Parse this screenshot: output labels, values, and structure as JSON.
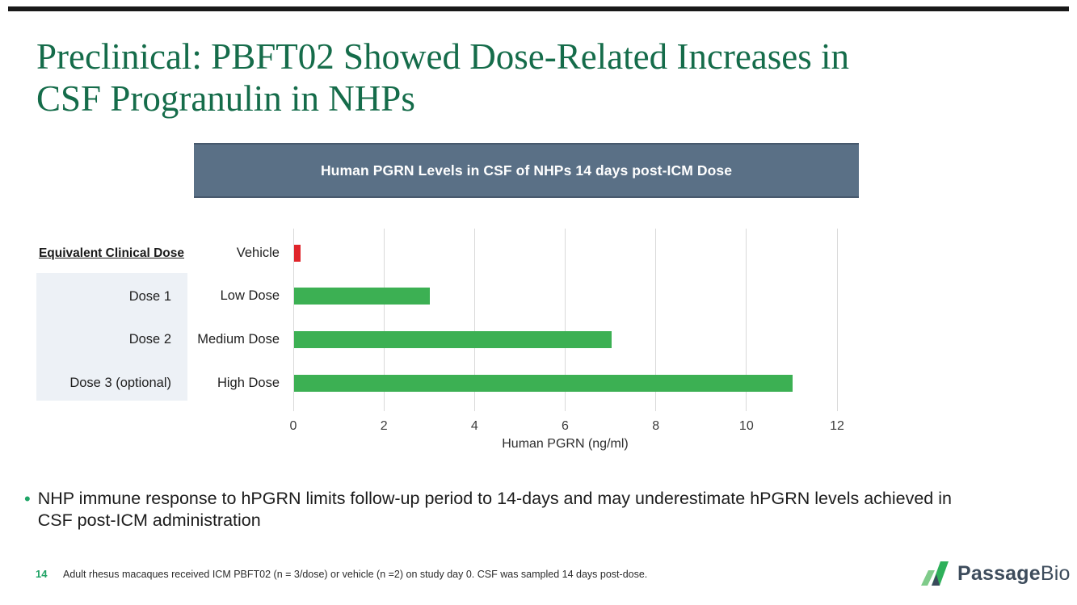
{
  "slide": {
    "title": "Preclinical: PBFT02 Showed Dose-Related Increases in\nCSF Progranulin in NHPs",
    "title_color": "#156c4a",
    "top_rule_color": "#181818"
  },
  "chart_header": {
    "label": "Human PGRN Levels in CSF of NHPs 14 days post-ICM Dose",
    "bg_color": "#5a7086",
    "border_color": "#47596d"
  },
  "dose_panel": {
    "heading": "Equivalent Clinical Dose",
    "items": [
      "Dose 1",
      "Dose 2",
      "Dose 3 (optional)"
    ],
    "bg_color": "#edf1f6"
  },
  "chart_data": {
    "type": "bar",
    "orientation": "horizontal",
    "title": "Human PGRN Levels in CSF of NHPs 14 days post-ICM Dose",
    "categories": [
      "Vehicle",
      "Low Dose",
      "Medium Dose",
      "High Dose"
    ],
    "values": [
      0.15,
      3,
      7,
      11
    ],
    "bar_colors": [
      "#e0252b",
      "#3cb053",
      "#3cb053",
      "#3cb053"
    ],
    "xlabel": "Human PGRN (ng/ml)",
    "xlim": [
      0,
      12
    ],
    "xticks": [
      0,
      2,
      4,
      6,
      8,
      10,
      12
    ],
    "grid": true,
    "gridline_color": "#d9d9d9",
    "legend": "none"
  },
  "bullet": {
    "marker": "•",
    "marker_color": "#1fa567",
    "text": "NHP immune response to hPGRN limits follow-up period to 14-days and may underestimate hPGRN levels achieved in\nCSF post-ICM administration"
  },
  "footer": {
    "page_number": "14",
    "note": "Adult rhesus macaques received ICM PBFT02 (n = 3/dose) or vehicle (n =2) on study day 0. CSF was sampled 14 days post-dose."
  },
  "logo": {
    "name_bold": "Passage",
    "name_regular": "Bio",
    "mark_green_light": "#7fcb8a",
    "mark_green_dark": "#2eb05a",
    "mark_navy": "#3a4a5c",
    "text_color": "#3d4c5c"
  }
}
